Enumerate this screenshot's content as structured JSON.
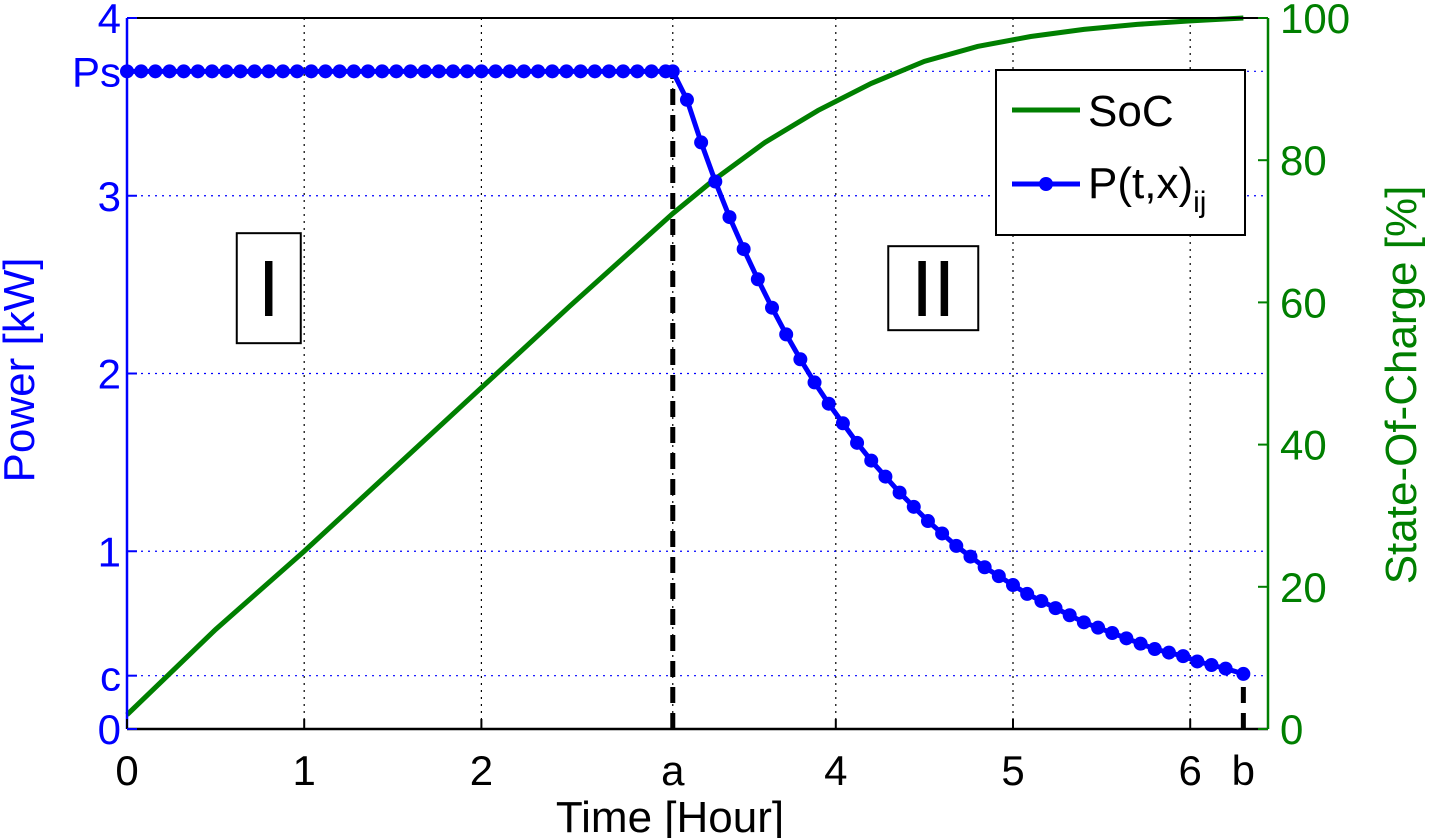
{
  "chart_data": {
    "type": "line",
    "title": "",
    "xlabel": "Time [Hour]",
    "ylabel": "Power [kW]",
    "y2label": "State-Of-Charge [%]",
    "xlim": [
      0,
      6.5
    ],
    "ylim": [
      0,
      4
    ],
    "y2lim": [
      0,
      100
    ],
    "grid": true,
    "legend_position": "top-right",
    "x_ticks": [
      {
        "value": 0,
        "label": "0"
      },
      {
        "value": 1,
        "label": "1"
      },
      {
        "value": 2,
        "label": "2"
      },
      {
        "value": 3.08,
        "label": "a"
      },
      {
        "value": 4,
        "label": "4"
      },
      {
        "value": 5,
        "label": "5"
      },
      {
        "value": 6,
        "label": "6"
      },
      {
        "value": 6.3,
        "label": "b"
      }
    ],
    "y_ticks": [
      {
        "value": 0,
        "label": "0"
      },
      {
        "value": 0.3,
        "label": "c"
      },
      {
        "value": 1,
        "label": "1"
      },
      {
        "value": 2,
        "label": "2"
      },
      {
        "value": 3,
        "label": "3"
      },
      {
        "value": 3.7,
        "label": "Ps"
      },
      {
        "value": 4,
        "label": "4"
      }
    ],
    "y2_ticks": [
      {
        "value": 0,
        "label": "0"
      },
      {
        "value": 20,
        "label": "20"
      },
      {
        "value": 40,
        "label": "40"
      },
      {
        "value": 60,
        "label": "60"
      },
      {
        "value": 80,
        "label": "80"
      },
      {
        "value": 100,
        "label": "100"
      }
    ],
    "x_gridlines": [
      1,
      2,
      3.08,
      4,
      5,
      6
    ],
    "y_gridlines": [
      0.3,
      1,
      2,
      3,
      3.7
    ],
    "series": [
      {
        "name": "SoC",
        "axis": "right",
        "color": "#007f00",
        "marker": "none",
        "x": [
          0,
          0.5,
          1,
          1.5,
          2,
          2.5,
          3.08,
          3.3,
          3.6,
          3.9,
          4.2,
          4.5,
          4.8,
          5.1,
          5.4,
          5.7,
          6.0,
          6.3
        ],
        "y": [
          2,
          14,
          25,
          36.5,
          48,
          59.5,
          72.5,
          77,
          82.5,
          87,
          90.8,
          93.9,
          96,
          97.4,
          98.4,
          99.1,
          99.6,
          100
        ]
      },
      {
        "name": "P(t,x)",
        "name_subscript": "ij",
        "axis": "left",
        "color": "#0000ff",
        "marker": "circle",
        "x": [
          0,
          0.08,
          0.16,
          0.24,
          0.32,
          0.4,
          0.48,
          0.56,
          0.64,
          0.72,
          0.8,
          0.88,
          0.96,
          1.04,
          1.12,
          1.2,
          1.28,
          1.36,
          1.44,
          1.52,
          1.6,
          1.68,
          1.76,
          1.84,
          1.92,
          2.0,
          2.08,
          2.16,
          2.24,
          2.32,
          2.4,
          2.48,
          2.56,
          2.64,
          2.72,
          2.8,
          2.88,
          2.96,
          3.04,
          3.08,
          3.16,
          3.24,
          3.32,
          3.4,
          3.48,
          3.56,
          3.64,
          3.72,
          3.8,
          3.88,
          3.96,
          4.04,
          4.12,
          4.2,
          4.28,
          4.36,
          4.44,
          4.52,
          4.6,
          4.68,
          4.76,
          4.84,
          4.92,
          5.0,
          5.08,
          5.16,
          5.24,
          5.32,
          5.4,
          5.48,
          5.56,
          5.64,
          5.72,
          5.8,
          5.88,
          5.96,
          6.04,
          6.12,
          6.2,
          6.3
        ],
        "y": [
          3.7,
          3.7,
          3.7,
          3.7,
          3.7,
          3.7,
          3.7,
          3.7,
          3.7,
          3.7,
          3.7,
          3.7,
          3.7,
          3.7,
          3.7,
          3.7,
          3.7,
          3.7,
          3.7,
          3.7,
          3.7,
          3.7,
          3.7,
          3.7,
          3.7,
          3.7,
          3.7,
          3.7,
          3.7,
          3.7,
          3.7,
          3.7,
          3.7,
          3.7,
          3.7,
          3.7,
          3.7,
          3.7,
          3.7,
          3.7,
          3.54,
          3.3,
          3.08,
          2.88,
          2.7,
          2.53,
          2.37,
          2.22,
          2.08,
          1.95,
          1.83,
          1.72,
          1.61,
          1.51,
          1.42,
          1.33,
          1.25,
          1.17,
          1.1,
          1.03,
          0.97,
          0.91,
          0.86,
          0.81,
          0.76,
          0.72,
          0.68,
          0.64,
          0.6,
          0.57,
          0.54,
          0.51,
          0.48,
          0.45,
          0.43,
          0.41,
          0.38,
          0.36,
          0.34,
          0.31
        ]
      }
    ],
    "dashed_markers": [
      {
        "x": 3.08,
        "from_y": 0,
        "to_y": 3.7
      },
      {
        "x": 6.3,
        "from_y": 0,
        "to_y": 0.31
      }
    ],
    "region_labels": [
      {
        "text": "I",
        "x": 0.8,
        "y": 2.48
      },
      {
        "text": "II",
        "x": 4.55,
        "y": 2.48
      }
    ]
  }
}
